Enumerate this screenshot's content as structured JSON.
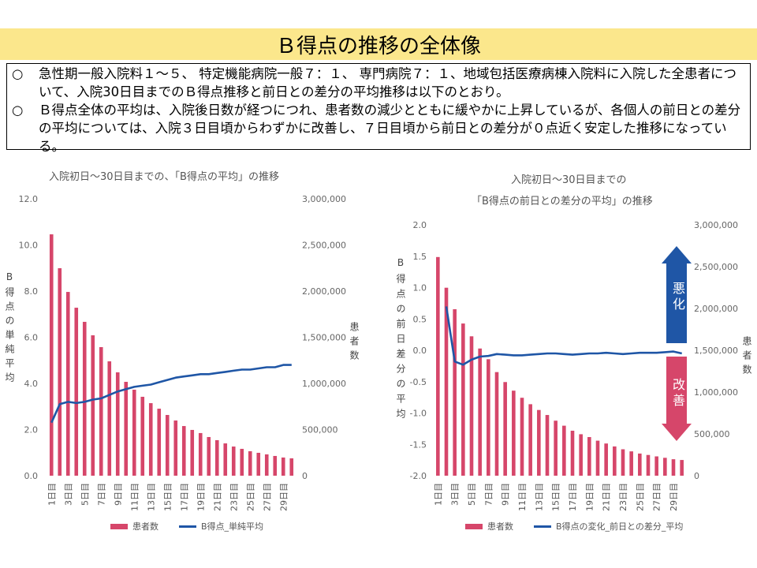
{
  "title": "Ｂ得点の推移の全体像",
  "summary": {
    "bullet": "○",
    "p1": "急性期一般入院料１～５、 特定機能病院一般７：１、 専門病院７：１、地域包括医療病棟入院料に入院した全患者について、入院30日目までのＢ得点推移と前日との差分の平均推移は以下のとおり。",
    "p2": "Ｂ得点全体の平均は、入院後日数が経つにつれ、患者数の減少とともに緩やかに上昇しているが、各個人の前日との差分の平均については、入院３日目頃からわずかに改善し、７日目頃から前日との差分が０点近く安定した推移になっている。"
  },
  "colors": {
    "title_band": "#fbe78c",
    "bar": "#d6466a",
    "line": "#1f56a6",
    "arrow_up": "#1f56a6",
    "arrow_down": "#d6466a"
  },
  "arrows": {
    "worse": "悪化",
    "better": "改善"
  },
  "chart_data": [
    {
      "type": "bar+line",
      "title": "入院初日～30日目までの、「B得点の平均」の推移",
      "ylabel": "B得点の単純平均",
      "y2label": "患者数",
      "ylim": [
        0,
        12
      ],
      "y2lim": [
        0,
        3000000
      ],
      "ytick_labels": [
        "12.0",
        "10.0",
        "8.0",
        "6.0",
        "4.0",
        "2.0",
        "0.0"
      ],
      "y2tick_labels": [
        "3,000,000",
        "2,500,000",
        "2,000,000",
        "1,500,000",
        "1,000,000",
        "500,000",
        "0"
      ],
      "x": [
        1,
        2,
        3,
        4,
        5,
        6,
        7,
        8,
        9,
        10,
        11,
        12,
        13,
        14,
        15,
        16,
        17,
        18,
        19,
        20,
        21,
        22,
        23,
        24,
        25,
        26,
        27,
        28,
        29,
        30
      ],
      "x_tick_labels": [
        "1日目",
        "3日目",
        "5日目",
        "7日目",
        "9日目",
        "11日目",
        "13日目",
        "15日目",
        "17日目",
        "19日目",
        "21日目",
        "23日目",
        "25日目",
        "27日目",
        "29日目"
      ],
      "series": [
        {
          "name": "患者数",
          "type": "bar",
          "axis": "right",
          "values": [
            2615000,
            2248000,
            1991000,
            1820000,
            1667000,
            1521000,
            1393000,
            1239000,
            1120000,
            1017000,
            932000,
            855000,
            786000,
            726000,
            658000,
            598000,
            538000,
            496000,
            462000,
            419000,
            385000,
            350000,
            316000,
            291000,
            265000,
            248000,
            231000,
            214000,
            197000,
            188000
          ]
        },
        {
          "name": "B得点_単純平均",
          "type": "line",
          "axis": "left",
          "values": [
            2.3,
            3.1,
            3.2,
            3.15,
            3.2,
            3.3,
            3.35,
            3.5,
            3.65,
            3.75,
            3.85,
            3.9,
            3.95,
            4.05,
            4.15,
            4.25,
            4.3,
            4.35,
            4.4,
            4.4,
            4.45,
            4.5,
            4.55,
            4.6,
            4.6,
            4.65,
            4.7,
            4.7,
            4.8,
            4.8
          ]
        }
      ],
      "legend": "bottom"
    },
    {
      "type": "bar+line",
      "title": "入院初日～30日目までの",
      "subtitle": "「B得点の前日との差分の平均」の推移",
      "ylabel": "B得点の前日差分の平均",
      "y2label": "患者数",
      "ylim": [
        -2,
        2
      ],
      "y2lim": [
        0,
        3000000
      ],
      "ytick_labels": [
        "2.0",
        "1.5",
        "1.0",
        "0.5",
        "0.0",
        "-0.5",
        "-1.0",
        "-1.5",
        "-2.0"
      ],
      "y2tick_labels": [
        "3,000,000",
        "2,500,000",
        "2,000,000",
        "1,500,000",
        "1,000,000",
        "500,000",
        "0"
      ],
      "x": [
        1,
        2,
        3,
        4,
        5,
        6,
        7,
        8,
        9,
        10,
        11,
        12,
        13,
        14,
        15,
        16,
        17,
        18,
        19,
        20,
        21,
        22,
        23,
        24,
        25,
        26,
        27,
        28,
        29,
        30
      ],
      "x_tick_labels": [
        "1日目",
        "3日目",
        "5日目",
        "7日目",
        "9日目",
        "11日目",
        "13日目",
        "15日目",
        "17日目",
        "19日目",
        "21日目",
        "23日目",
        "25日目",
        "27日目",
        "29日目"
      ],
      "series": [
        {
          "name": "患者数",
          "type": "bar",
          "axis": "right",
          "values": [
            2615000,
            2248000,
            1991000,
            1820000,
            1667000,
            1521000,
            1393000,
            1239000,
            1120000,
            1017000,
            932000,
            855000,
            786000,
            726000,
            658000,
            598000,
            538000,
            496000,
            462000,
            419000,
            385000,
            350000,
            316000,
            291000,
            265000,
            248000,
            231000,
            214000,
            197000,
            188000
          ]
        },
        {
          "name": "B得点の変化_前日との差分_平均",
          "type": "line",
          "axis": "left",
          "values": [
            null,
            0.7,
            -0.18,
            -0.23,
            -0.15,
            -0.1,
            -0.09,
            -0.06,
            -0.07,
            -0.08,
            -0.08,
            -0.07,
            -0.06,
            -0.05,
            -0.05,
            -0.06,
            -0.07,
            -0.06,
            -0.05,
            -0.05,
            -0.04,
            -0.05,
            -0.06,
            -0.05,
            -0.04,
            -0.04,
            -0.04,
            -0.03,
            -0.02,
            -0.05
          ]
        }
      ],
      "legend": "bottom"
    }
  ]
}
